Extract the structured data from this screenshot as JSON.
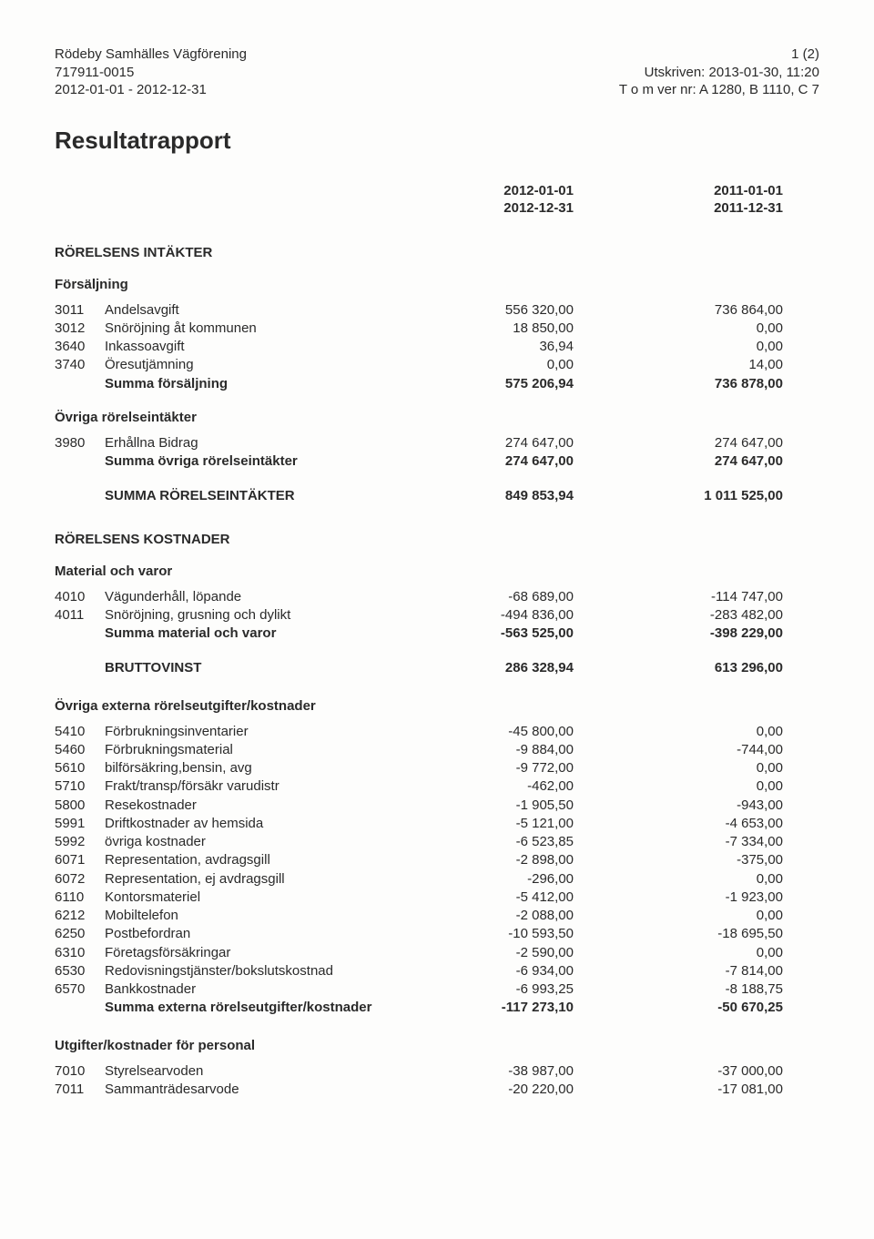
{
  "header": {
    "org": "Rödeby Samhälles Vägförening",
    "orgnr": "717911-0015",
    "period": "2012-01-01 - 2012-12-31",
    "page": "1 (2)",
    "printed": "Utskriven: 2013-01-30, 11:20",
    "ver": "T o m ver nr: A 1280, B 1110, C 7"
  },
  "title": "Resultatrapport",
  "periods": {
    "cur1": "2012-01-01",
    "cur2": "2012-12-31",
    "prev1": "2011-01-01",
    "prev2": "2011-12-31"
  },
  "sec_intakter": "RÖRELSENS INTÄKTER",
  "sub_forsaljning": "Försäljning",
  "forsaljning": [
    {
      "code": "3011",
      "label": "Andelsavgift",
      "cur": "556 320,00",
      "prev": "736 864,00"
    },
    {
      "code": "3012",
      "label": "Snöröjning åt kommunen",
      "cur": "18 850,00",
      "prev": "0,00"
    },
    {
      "code": "3640",
      "label": "Inkassoavgift",
      "cur": "36,94",
      "prev": "0,00"
    },
    {
      "code": "3740",
      "label": "Öresutjämning",
      "cur": "0,00",
      "prev": "14,00"
    }
  ],
  "sum_forsaljning": {
    "label": "Summa försäljning",
    "cur": "575 206,94",
    "prev": "736 878,00"
  },
  "sub_ovriga_int": "Övriga rörelseintäkter",
  "ovriga_int": [
    {
      "code": "3980",
      "label": "Erhållna Bidrag",
      "cur": "274 647,00",
      "prev": "274 647,00"
    }
  ],
  "sum_ovriga_int": {
    "label": "Summa övriga rörelseintäkter",
    "cur": "274 647,00",
    "prev": "274 647,00"
  },
  "sum_rorelseint": {
    "label": "SUMMA RÖRELSEINTÄKTER",
    "cur": "849 853,94",
    "prev": "1 011 525,00"
  },
  "sec_kostnader": "RÖRELSENS KOSTNADER",
  "sub_material": "Material och varor",
  "material": [
    {
      "code": "4010",
      "label": "Vägunderhåll, löpande",
      "cur": "-68 689,00",
      "prev": "-114 747,00"
    },
    {
      "code": "4011",
      "label": "Snöröjning, grusning och dylikt",
      "cur": "-494 836,00",
      "prev": "-283 482,00"
    }
  ],
  "sum_material": {
    "label": "Summa material och varor",
    "cur": "-563 525,00",
    "prev": "-398 229,00"
  },
  "bruttovinst": {
    "label": "BRUTTOVINST",
    "cur": "286 328,94",
    "prev": "613 296,00"
  },
  "sub_ovriga_ext": "Övriga externa rörelseutgifter/kostnader",
  "ovriga_ext": [
    {
      "code": "5410",
      "label": "Förbrukningsinventarier",
      "cur": "-45 800,00",
      "prev": "0,00"
    },
    {
      "code": "5460",
      "label": "Förbrukningsmaterial",
      "cur": "-9 884,00",
      "prev": "-744,00"
    },
    {
      "code": "5610",
      "label": "bilförsäkring,bensin, avg",
      "cur": "-9 772,00",
      "prev": "0,00"
    },
    {
      "code": "5710",
      "label": "Frakt/transp/försäkr varudistr",
      "cur": "-462,00",
      "prev": "0,00"
    },
    {
      "code": "5800",
      "label": "Resekostnader",
      "cur": "-1 905,50",
      "prev": "-943,00"
    },
    {
      "code": "5991",
      "label": "Driftkostnader av hemsida",
      "cur": "-5 121,00",
      "prev": "-4 653,00"
    },
    {
      "code": "5992",
      "label": "övriga kostnader",
      "cur": "-6 523,85",
      "prev": "-7 334,00"
    },
    {
      "code": "6071",
      "label": "Representation, avdragsgill",
      "cur": "-2 898,00",
      "prev": "-375,00"
    },
    {
      "code": "6072",
      "label": "Representation, ej avdragsgill",
      "cur": "-296,00",
      "prev": "0,00"
    },
    {
      "code": "6110",
      "label": "Kontorsmateriel",
      "cur": "-5 412,00",
      "prev": "-1 923,00"
    },
    {
      "code": "6212",
      "label": "Mobiltelefon",
      "cur": "-2 088,00",
      "prev": "0,00"
    },
    {
      "code": "6250",
      "label": "Postbefordran",
      "cur": "-10 593,50",
      "prev": "-18 695,50"
    },
    {
      "code": "6310",
      "label": "Företagsförsäkringar",
      "cur": "-2 590,00",
      "prev": "0,00"
    },
    {
      "code": "6530",
      "label": "Redovisningstjänster/bokslutskostnad",
      "cur": "-6 934,00",
      "prev": "-7 814,00"
    },
    {
      "code": "6570",
      "label": "Bankkostnader",
      "cur": "-6 993,25",
      "prev": "-8 188,75"
    }
  ],
  "sum_ovriga_ext": {
    "label": "Summa externa rörelseutgifter/kostnader",
    "cur": "-117 273,10",
    "prev": "-50 670,25"
  },
  "sub_personal": "Utgifter/kostnader för personal",
  "personal": [
    {
      "code": "7010",
      "label": "Styrelsearvoden",
      "cur": "-38 987,00",
      "prev": "-37 000,00"
    },
    {
      "code": "7011",
      "label": "Sammanträdesarvode",
      "cur": "-20 220,00",
      "prev": "-17 081,00"
    }
  ]
}
